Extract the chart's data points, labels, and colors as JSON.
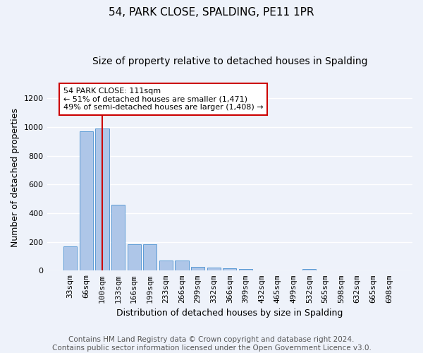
{
  "title": "54, PARK CLOSE, SPALDING, PE11 1PR",
  "subtitle": "Size of property relative to detached houses in Spalding",
  "xlabel": "Distribution of detached houses by size in Spalding",
  "ylabel": "Number of detached properties",
  "categories": [
    "33sqm",
    "66sqm",
    "100sqm",
    "133sqm",
    "166sqm",
    "199sqm",
    "233sqm",
    "266sqm",
    "299sqm",
    "332sqm",
    "366sqm",
    "399sqm",
    "432sqm",
    "465sqm",
    "499sqm",
    "532sqm",
    "565sqm",
    "598sqm",
    "632sqm",
    "665sqm",
    "698sqm"
  ],
  "values": [
    170,
    970,
    990,
    460,
    185,
    185,
    70,
    70,
    25,
    20,
    15,
    10,
    0,
    0,
    0,
    10,
    0,
    0,
    0,
    0,
    0
  ],
  "bar_color": "#aec6e8",
  "bar_edge_color": "#5b9bd5",
  "vline_x_index": 2,
  "vline_color": "#cc0000",
  "annotation_text": "54 PARK CLOSE: 111sqm\n← 51% of detached houses are smaller (1,471)\n49% of semi-detached houses are larger (1,408) →",
  "annotation_box_color": "#ffffff",
  "annotation_box_edge": "#cc0000",
  "ylim": [
    0,
    1300
  ],
  "yticks": [
    0,
    200,
    400,
    600,
    800,
    1000,
    1200
  ],
  "footer": "Contains HM Land Registry data © Crown copyright and database right 2024.\nContains public sector information licensed under the Open Government Licence v3.0.",
  "bg_color": "#eef2fa",
  "plot_bg_color": "#eef2fa",
  "grid_color": "#ffffff",
  "title_fontsize": 11,
  "subtitle_fontsize": 10,
  "axis_label_fontsize": 9,
  "tick_fontsize": 8,
  "footer_fontsize": 7.5,
  "annot_fontsize": 8
}
